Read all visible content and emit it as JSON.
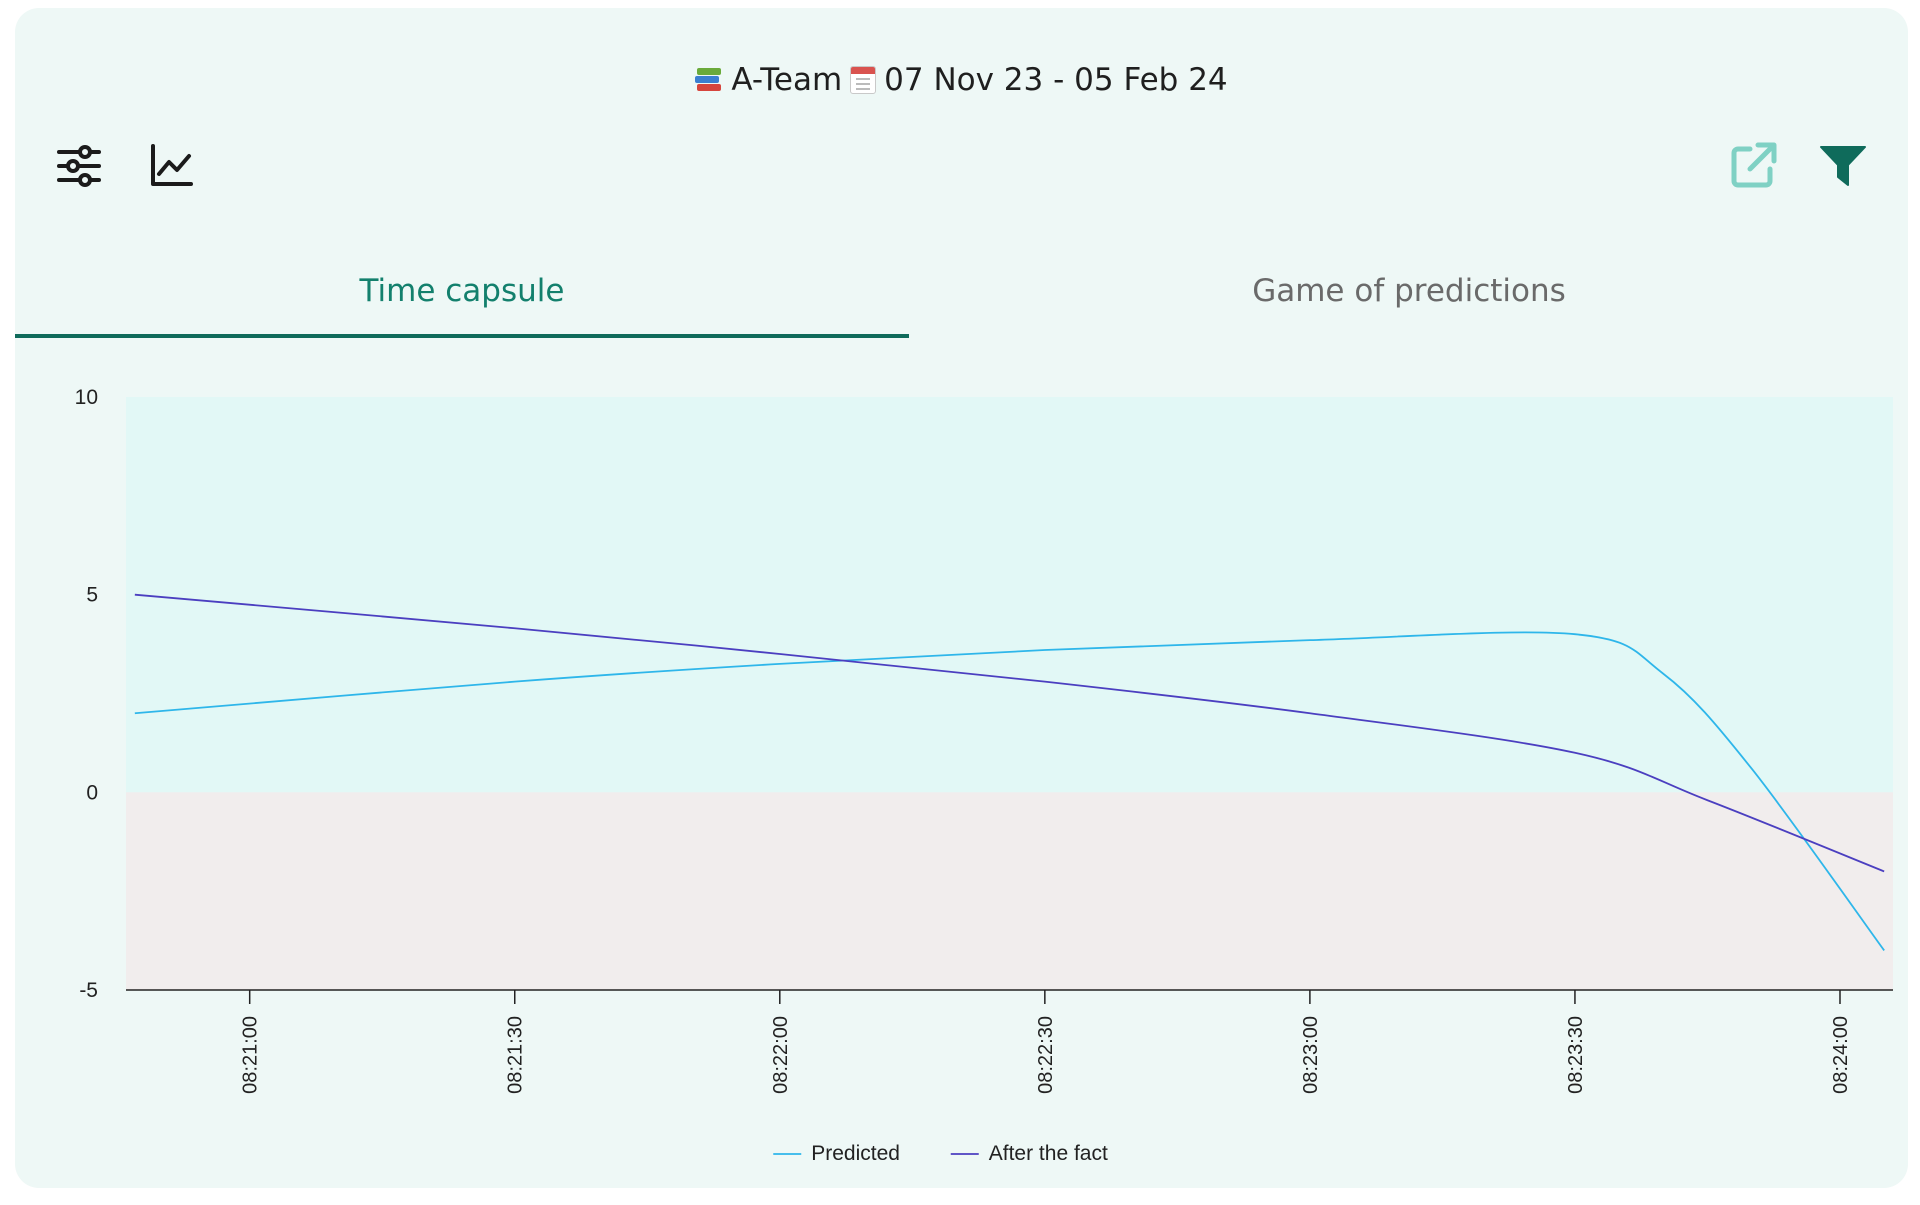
{
  "header": {
    "team": "A-Team",
    "date_range": "07 Nov 23 - 05 Feb 24",
    "books_icon": "books-emoji-icon",
    "calendar_icon": "calendar-emoji-icon"
  },
  "toolbar": {
    "settings_icon": "sliders-icon",
    "chart_icon": "line-chart-icon",
    "export_icon": "external-link-icon",
    "filter_icon": "filter-icon"
  },
  "tabs": [
    {
      "label": "Time capsule",
      "active": true
    },
    {
      "label": "Game of predictions",
      "active": false
    }
  ],
  "colors": {
    "accent": "#0f6b5b",
    "predicted": "#2eb6ea",
    "after_the_fact": "#4b3fc0",
    "positive_band": "#e2f8f6",
    "negative_band": "#f1eded",
    "export_icon": "#7fd1c4"
  },
  "chart_data": {
    "type": "line",
    "title": "",
    "xlabel": "",
    "ylabel": "",
    "ylim": [
      -5,
      10
    ],
    "yticks": [
      -5,
      0,
      5,
      10
    ],
    "x_unit": "time",
    "xlim": [
      "08:20:46",
      "08:24:06"
    ],
    "xticks": [
      "08:21:00",
      "08:21:30",
      "08:22:00",
      "08:22:30",
      "08:23:00",
      "08:23:30",
      "08:24:00"
    ],
    "bands": [
      {
        "from": 0,
        "to": 10,
        "color": "#e2f8f6"
      },
      {
        "from": -5,
        "to": 0,
        "color": "#f1eded"
      }
    ],
    "legend": "bottom-center",
    "series": [
      {
        "name": "Predicted",
        "color": "#2eb6ea",
        "points": [
          [
            "08:20:47",
            2.0
          ],
          [
            "08:21:30",
            2.8
          ],
          [
            "08:22:00",
            3.25
          ],
          [
            "08:22:30",
            3.6
          ],
          [
            "08:23:00",
            3.85
          ],
          [
            "08:23:30",
            4.0
          ],
          [
            "08:23:40",
            3.0
          ],
          [
            "08:23:50",
            0.6
          ],
          [
            "08:24:05",
            -4.0
          ]
        ]
      },
      {
        "name": "After the fact",
        "color": "#4b3fc0",
        "points": [
          [
            "08:20:47",
            5.0
          ],
          [
            "08:21:30",
            4.15
          ],
          [
            "08:22:00",
            3.5
          ],
          [
            "08:22:30",
            2.8
          ],
          [
            "08:23:00",
            2.0
          ],
          [
            "08:23:30",
            1.0
          ],
          [
            "08:23:45",
            -0.2
          ],
          [
            "08:24:05",
            -2.0
          ]
        ]
      }
    ]
  }
}
